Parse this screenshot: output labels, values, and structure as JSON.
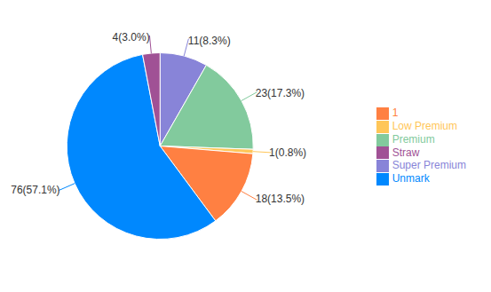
{
  "chart_data": {
    "type": "pie",
    "categories": [
      "Super Premium",
      "Premium",
      "Low Premium",
      "1",
      "Unmark",
      "Straw"
    ],
    "values": [
      11,
      23,
      1,
      18,
      76,
      4
    ],
    "value_labels": [
      "11(8.3%)",
      "23(17.3%)",
      "1(0.8%)",
      "18(13.5%)",
      "76(57.1%)",
      "4(3.0%)"
    ],
    "data_labels": true,
    "legend": "right"
  }
}
